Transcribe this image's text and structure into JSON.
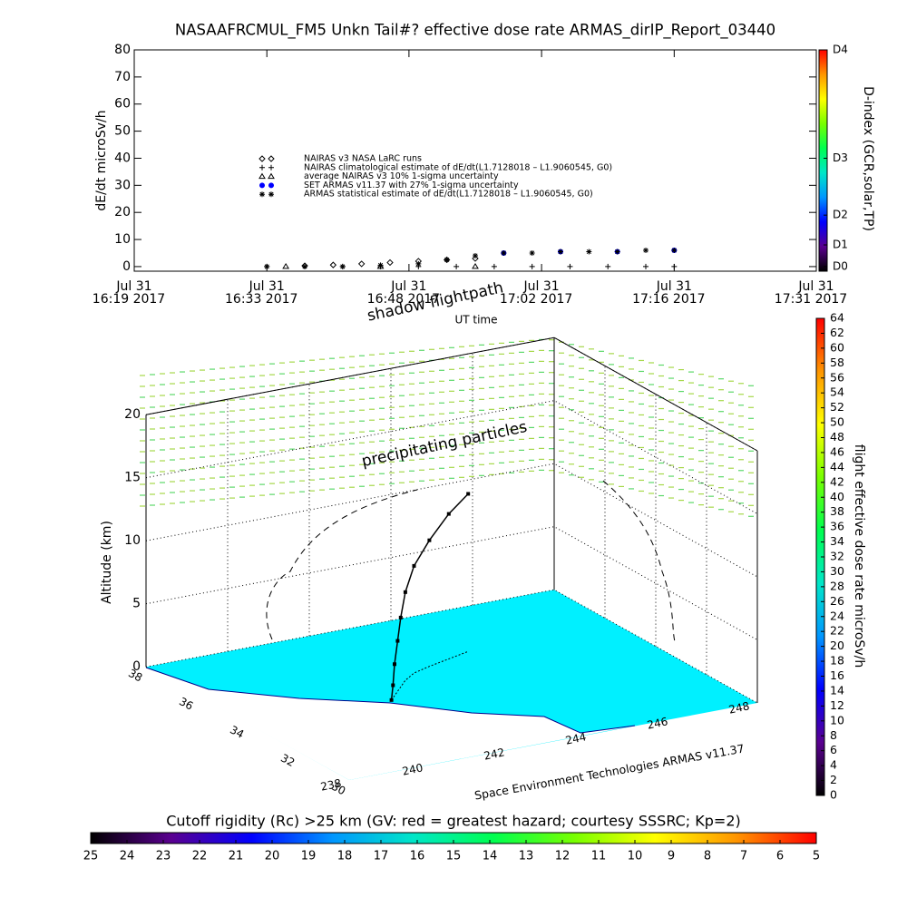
{
  "chart_data": [
    {
      "type": "scatter",
      "title": "NASAAFRCMUL_FM5 Unkn Tail#? effective dose rate ARMAS_dirIP_Report_03440",
      "ylabel": "dE/dt microSv/h",
      "xlabel": "UT time",
      "xlim": [
        "2017-07-31 16:19",
        "2017-07-31 17:31"
      ],
      "xticks": [
        {
          "value": "2017-07-31 16:19",
          "label": [
            "Jul 31",
            "16:19 2017"
          ]
        },
        {
          "value": "2017-07-31 16:33",
          "label": [
            "Jul 31",
            "16:33 2017"
          ]
        },
        {
          "value": "2017-07-31 16:48",
          "label": [
            "Jul 31",
            "16:48 2017"
          ]
        },
        {
          "value": "2017-07-31 17:02",
          "label": [
            "Jul 31",
            "17:02 2017"
          ]
        },
        {
          "value": "2017-07-31 17:16",
          "label": [
            "Jul 31",
            "17:16 2017"
          ]
        },
        {
          "value": "2017-07-31 17:31",
          "label": [
            "Jul 31",
            "17:31 2017"
          ]
        }
      ],
      "ylim": [
        -1.7,
        80
      ],
      "yticks": [
        0,
        10,
        20,
        30,
        40,
        50,
        60,
        70,
        80
      ],
      "series": [
        {
          "name": "NAIRAS v3 NASA LaRC runs",
          "marker": "diamond",
          "color": "#000000",
          "x": [
            "2017-07-31 16:37",
            "2017-07-31 16:40",
            "2017-07-31 16:43",
            "2017-07-31 16:46",
            "2017-07-31 16:49",
            "2017-07-31 16:52",
            "2017-07-31 16:55"
          ],
          "values": [
            0.3,
            0.6,
            1,
            1.5,
            2,
            2.5,
            3
          ]
        },
        {
          "name": "NAIRAS climatological estimate of dE/dt(L1.7128018 – L1.9060545, G0)",
          "marker": "plus",
          "color": "#000000",
          "x": [
            "2017-07-31 16:33",
            "2017-07-31 16:37",
            "2017-07-31 16:41",
            "2017-07-31 16:45",
            "2017-07-31 16:49",
            "2017-07-31 16:53",
            "2017-07-31 16:57",
            "2017-07-31 17:01",
            "2017-07-31 17:05",
            "2017-07-31 17:09",
            "2017-07-31 17:13",
            "2017-07-31 17:16"
          ],
          "values": [
            0,
            0,
            0,
            0,
            0,
            0,
            0,
            0,
            0,
            0,
            0,
            0
          ]
        },
        {
          "name": "average NAIRAS v3 10% 1-sigma uncertainty",
          "marker": "triangle",
          "color": "#000000",
          "x": [
            "2017-07-31 16:35",
            "2017-07-31 16:45",
            "2017-07-31 16:55"
          ],
          "values": [
            0,
            0,
            0
          ]
        },
        {
          "name": "SET ARMAS v11.37 with 27% 1-sigma uncertainty",
          "marker": "circle",
          "color": "#0000ff",
          "x": [
            "2017-07-31 16:58",
            "2017-07-31 17:04",
            "2017-07-31 17:10",
            "2017-07-31 17:16"
          ],
          "values": [
            5,
            5.5,
            5.5,
            6
          ]
        },
        {
          "name": "ARMAS statistical estimate of dE/dt(L1.7128018 – L1.9060545, G0)",
          "marker": "asterisk",
          "color": "#000000",
          "x": [
            "2017-07-31 16:33",
            "2017-07-31 16:37",
            "2017-07-31 16:41",
            "2017-07-31 16:45",
            "2017-07-31 16:49",
            "2017-07-31 16:52",
            "2017-07-31 16:55",
            "2017-07-31 16:58",
            "2017-07-31 17:01",
            "2017-07-31 17:04",
            "2017-07-31 17:07",
            "2017-07-31 17:10",
            "2017-07-31 17:13",
            "2017-07-31 17:16"
          ],
          "values": [
            0,
            0,
            0,
            0.5,
            1,
            2.5,
            4,
            5,
            5,
            5.5,
            5.5,
            5.5,
            6,
            6
          ]
        }
      ]
    },
    {
      "type": "colorbar",
      "orientation": "vertical",
      "label": "D-index (GCR,solar,TP)",
      "ylim": [
        -1.7,
        80
      ],
      "yticks": [
        {
          "value": 0,
          "label": "D0"
        },
        {
          "value": 8,
          "label": "D1"
        },
        {
          "value": 19,
          "label": "D2"
        },
        {
          "value": 40,
          "label": "D3"
        },
        {
          "value": 80,
          "label": "D4"
        }
      ],
      "colors": [
        "#000000",
        "#5a0090",
        "#0000ff",
        "#0096ff",
        "#00e6c8",
        "#00ff50",
        "#78ff00",
        "#ffff00",
        "#ff9600",
        "#ff0000"
      ]
    },
    {
      "type": "scatter3d",
      "zlabel": "Altitude (km)",
      "xlim": [
        238,
        248
      ],
      "ylim": [
        30,
        38
      ],
      "zlim": [
        0,
        20
      ],
      "xticks": [
        238,
        240,
        242,
        244,
        246,
        248
      ],
      "yticks": [
        30,
        32,
        34,
        36,
        38
      ],
      "zticks": [
        0,
        5,
        10,
        15,
        20
      ],
      "annotations": [
        "shadow flightpath",
        "precipitating particles",
        "Space Environment Technologies ARMAS v11.37"
      ],
      "series": [
        {
          "name": "flightpath",
          "color": "#000000",
          "lon": [
            241.4,
            241.5,
            241.6,
            241.8,
            242.0,
            242.3,
            242.7,
            243.2,
            243.8,
            244.4
          ],
          "lat": [
            33.8,
            33.9,
            34.0,
            34.2,
            34.4,
            34.7,
            35.0,
            35.2,
            35.4,
            35.6
          ],
          "alt": [
            0,
            1,
            2.5,
            4,
            5.5,
            7,
            8.5,
            10,
            11.5,
            12.5
          ]
        }
      ]
    },
    {
      "type": "colorbar",
      "orientation": "vertical",
      "label": "flight effective dose rate microSv/h",
      "ylim": [
        0,
        64
      ],
      "yticks": [
        0,
        2,
        4,
        6,
        8,
        10,
        12,
        14,
        16,
        18,
        20,
        22,
        24,
        26,
        28,
        30,
        32,
        34,
        36,
        38,
        40,
        42,
        44,
        46,
        48,
        50,
        52,
        54,
        56,
        58,
        60,
        62,
        64
      ],
      "colors": [
        "#000000",
        "#5a0090",
        "#0000ff",
        "#0096ff",
        "#00e6c8",
        "#00ff50",
        "#78ff00",
        "#ffff00",
        "#ff9600",
        "#ff0000"
      ]
    },
    {
      "type": "colorbar",
      "orientation": "horizontal",
      "title": "Cutoff rigidity (Rc) >25 km (GV: red = greatest hazard; courtesy SSSRC; Kp=2)",
      "xlim": [
        25,
        5
      ],
      "xticks": [
        25,
        24,
        23,
        22,
        21,
        20,
        19,
        18,
        17,
        16,
        15,
        14,
        13,
        12,
        11,
        10,
        9,
        8,
        7,
        6,
        5
      ],
      "colors": [
        "#000000",
        "#5a0090",
        "#0000ff",
        "#0096ff",
        "#00e6c8",
        "#00ff50",
        "#78ff00",
        "#ffff00",
        "#ff9600",
        "#ff0000"
      ]
    }
  ]
}
